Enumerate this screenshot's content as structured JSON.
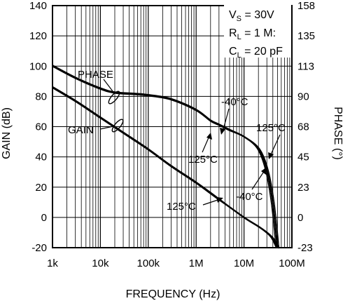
{
  "chart_data": {
    "type": "line",
    "xlabel": "FREQUENCY (Hz)",
    "ylabel": "GAIN (dB)",
    "y2label": "PHASE (°)",
    "x_scale": "log",
    "xlim": [
      1000,
      100000000
    ],
    "ylim": [
      -20,
      140
    ],
    "y2lim": [
      -23,
      158
    ],
    "grid": true,
    "x_tick_values": [
      1000,
      10000,
      100000,
      1000000,
      10000000,
      100000000
    ],
    "x_tick_labels": [
      "1k",
      "10k",
      "100k",
      "1M",
      "10M",
      "100M"
    ],
    "y_ticks": [
      "-20",
      "0",
      "20",
      "40",
      "60",
      "80",
      "100",
      "120",
      "140"
    ],
    "y2_ticks": [
      "-23",
      "0",
      "23",
      "45",
      "68",
      "90",
      "113",
      "135",
      "158"
    ],
    "conditions": {
      "vs_main": "V",
      "vs_sub": "S",
      "vs_rest": " = 30V",
      "rl_main": "R",
      "rl_sub": "L",
      "rl_rest": " = 1 M:",
      "cl_main": "C",
      "cl_sub": "L",
      "cl_rest": " = 20 pF"
    },
    "curve_labels": {
      "phase": "PHASE",
      "gain": "GAIN",
      "phase_cold": "-40°C",
      "phase_hot": "125°C",
      "phase_hot_hf": "125°C",
      "gain_hot": "125°C",
      "gain_cold": "-40°C"
    },
    "series": [
      {
        "name": "GAIN",
        "axis": "left",
        "x": [
          1000,
          3000,
          10000,
          30000,
          100000,
          300000,
          1000000,
          3000000,
          10000000,
          20000000,
          30000000,
          40000000,
          50000000
        ],
        "y": [
          86,
          77,
          66,
          56,
          45,
          34,
          23,
          12,
          0,
          -6,
          -10,
          -14,
          -20
        ]
      },
      {
        "name": "PHASE",
        "axis": "right",
        "x": [
          1000,
          3000,
          10000,
          20000,
          50000,
          100000,
          300000,
          1000000,
          2000000,
          3000000,
          5000000,
          10000000,
          20000000,
          30000000,
          40000000,
          50000000
        ],
        "y": [
          113,
          104,
          96,
          93,
          92,
          91,
          88,
          80,
          72,
          69,
          65,
          60,
          51,
          35,
          10,
          -23
        ]
      }
    ]
  }
}
